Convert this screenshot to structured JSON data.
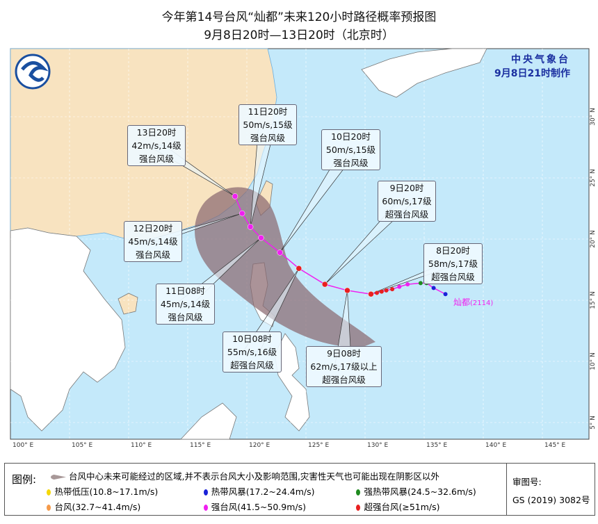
{
  "title": "今年第14号台风“灿都”未来120小时路径概率预报图",
  "subtitle": "9月8日20时—13日20时（北京时）",
  "agency": {
    "name": "中央气象台",
    "issued": "9月8日21时制作"
  },
  "typhoon": {
    "name": "灿都",
    "code": "(2114)"
  },
  "axes": {
    "lon": [
      "100° E",
      "105° E",
      "110° E",
      "115° E",
      "120° E",
      "125° E",
      "130° E",
      "135° E",
      "140° E",
      "145° E"
    ],
    "lat": [
      "30° N",
      "25° N",
      "20° N",
      "15° N",
      "10° N",
      "5° N"
    ]
  },
  "forecast_points": [
    {
      "time": "8日20时",
      "wind": "58m/s,17级",
      "grade": "超强台风级",
      "lon": 130.5,
      "lat": 15.5
    },
    {
      "time": "9日08时",
      "wind": "62m/s,17级以上",
      "grade": "超强台风级",
      "lon": 128.5,
      "lat": 15.8
    },
    {
      "time": "9日20时",
      "wind": "60m/s,17级",
      "grade": "超强台风级",
      "lon": 126.6,
      "lat": 16.3
    },
    {
      "time": "10日08时",
      "wind": "55m/s,16级",
      "grade": "超强台风级",
      "lon": 124.4,
      "lat": 17.6
    },
    {
      "time": "10日20时",
      "wind": "50m/s,15级",
      "grade": "强台风级",
      "lon": 122.8,
      "lat": 18.9
    },
    {
      "time": "11日08时",
      "wind": "45m/s,14级",
      "grade": "强台风级",
      "lon": 121.2,
      "lat": 20.1
    },
    {
      "time": "11日20时",
      "wind": "50m/s,15级",
      "grade": "强台风级",
      "lon": 120.3,
      "lat": 21.0
    },
    {
      "time": "12日20时",
      "wind": "45m/s,14级",
      "grade": "强台风级",
      "lon": 119.6,
      "lat": 22.1
    },
    {
      "time": "13日20时",
      "wind": "42m/s,14级",
      "grade": "强台风级",
      "lon": 119.0,
      "lat": 23.5
    }
  ],
  "legend": {
    "header": "图例:",
    "cone": "台风中心未来可能经过的区域,并不表示台风大小及影响范围,灾害性天气也可能出现在阴影区以外",
    "items": [
      {
        "label": "热带低压(10.8~17.1m/s)",
        "color": "#f5d80a"
      },
      {
        "label": "热带风暴(17.2~24.4m/s)",
        "color": "#1a22d8"
      },
      {
        "label": "强热带风暴(24.5~32.6m/s)",
        "color": "#1f8a1f"
      },
      {
        "label": "台风(32.7~41.4m/s)",
        "color": "#f59a4a"
      },
      {
        "label": "强台风(41.5~50.9m/s)",
        "color": "#f020f0"
      },
      {
        "label": "超强台风(≥51m/s)",
        "color": "#e82020"
      }
    ],
    "approval_label": "审图号:",
    "approval_no": "GS (2019) 3082号"
  },
  "colors": {
    "sea": "#c4e9fa",
    "china": "#f8e3c0",
    "land": "#ffffff",
    "track": "#f020f0",
    "cone": "#8a6a70"
  }
}
